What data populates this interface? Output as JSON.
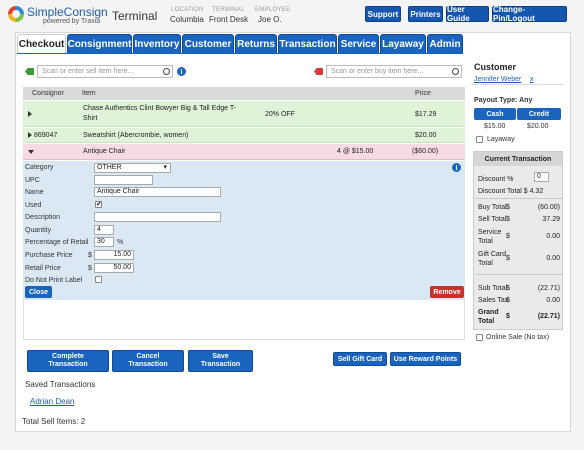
{
  "header": {
    "brand": "SimpleConsign",
    "brand_sub": "powered by Traxia",
    "title": "Terminal",
    "location_label": "LOCATION",
    "location": "Columbia",
    "terminal_label": "TERMINAL",
    "terminal": "Front Desk",
    "employee_label": "EMPLOYEE",
    "employee": "Joe O.",
    "buttons": [
      "Support",
      "Printers",
      "User Guide",
      "Change-Pin/Logout"
    ]
  },
  "tabs": [
    "Checkout",
    "Consignment",
    "Inventory",
    "Customer",
    "Returns",
    "Transaction",
    "Service",
    "Layaway",
    "Admin"
  ],
  "search": {
    "sell_placeholder": "Scan or enter sell item here...",
    "buy_placeholder": "Scan or enter buy item here..."
  },
  "table": {
    "headers": [
      "Consignor",
      "Item",
      "Price"
    ],
    "rows": [
      {
        "consignor": "",
        "item_line1": "Chase Authentics Clint Bowyer Big & Tall Edge T-",
        "item_line2": "Shirt",
        "discount": "20% OFF",
        "qty": "",
        "price": "$17.29"
      },
      {
        "consignor": "869047",
        "item_line1": "Sweatshirt (Abercrombie, women)",
        "item_line2": "",
        "discount": "",
        "qty": "",
        "price": "$20.00"
      },
      {
        "consignor": "",
        "item_line1": "Antique Chair",
        "item_line2": "",
        "discount": "",
        "qty": "4 @ $15.00",
        "price": "($60.00)"
      }
    ]
  },
  "detail": {
    "category_label": "Category",
    "category_value": "OTHER",
    "upc_label": "UPC",
    "upc_value": "",
    "name_label": "Name",
    "name_value": "Antique Chair",
    "used_label": "Used",
    "description_label": "Description",
    "description_value": "",
    "quantity_label": "Quantity",
    "quantity_value": "4",
    "pct_label": "Percentage of Retail",
    "pct_value": "30",
    "pct_unit": "%",
    "purchase_label": "Purchase Price",
    "purchase_value": "15.00",
    "retail_label": "Retail Price",
    "retail_value": "50.00",
    "currency": "$",
    "noprint_label": "Do Not Print Label",
    "close": "Close",
    "remove": "Remove"
  },
  "actions": {
    "complete_l1": "Complete",
    "complete_l2": "Transaction",
    "cancel_l1": "Cancel",
    "cancel_l2": "Transaction",
    "save_l1": "Save",
    "save_l2": "Transaction",
    "sell_gift": "Sell Gift Card",
    "reward": "Use Reward Points"
  },
  "saved": {
    "title": "Saved Transactions",
    "link": "Adrian Dean",
    "total_items": "Total Sell Items: 2"
  },
  "customer": {
    "title": "Customer",
    "name": "Jennifer Weber",
    "remove": "x",
    "payout_label": "Payout Type: Any",
    "cash": "Cash",
    "credit": "Credit",
    "cash_amt": "$15.00",
    "credit_amt": "$20.00",
    "layaway": "Layaway"
  },
  "current": {
    "title": "Current Transaction",
    "discount_pct_label": "Discount %",
    "discount_pct_value": "0",
    "discount_total": "Discount Total $ 4.32",
    "rows": [
      {
        "l1": "Buy Total",
        "l2": "",
        "d": "$",
        "v": "(60.00)"
      },
      {
        "l1": "Sell Total",
        "l2": "",
        "d": "$",
        "v": "37.29"
      },
      {
        "l1": "Service",
        "l2": "Total",
        "d": "$",
        "v": "0.00"
      },
      {
        "l1": "Gift Card",
        "l2": "Total",
        "d": "$",
        "v": "0.00"
      },
      {
        "l1": "Sub Total",
        "l2": "",
        "d": "$",
        "v": "(22.71)"
      },
      {
        "l1": "Sales Tax",
        "l2": "",
        "d": "$",
        "v": "0.00"
      },
      {
        "l1": "Grand",
        "l2": "Total",
        "d": "$",
        "v": "(22.71)"
      }
    ],
    "online_sale": "Online Sale (No tax)"
  },
  "colors": {
    "accent": "#1a64c0",
    "sell_row": "#dff3d9",
    "buy_row": "#f7dbe4",
    "detail_bg": "#d9e8f3",
    "remove": "#c9302c"
  }
}
